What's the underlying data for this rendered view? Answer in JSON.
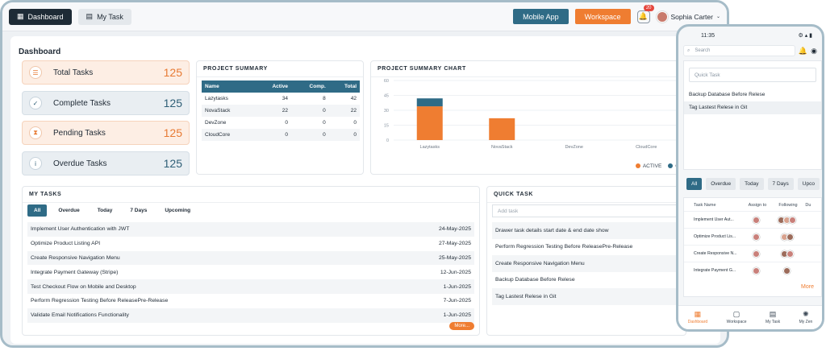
{
  "header": {
    "tabs": [
      {
        "label": "Dashboard"
      },
      {
        "label": "My Task"
      }
    ],
    "mobile_app": "Mobile App",
    "workspace": "Workspace",
    "notification_count": "20",
    "user_name": "Sophia Carter"
  },
  "page_title": "Dashboard",
  "stats": [
    {
      "label": "Total Tasks",
      "value": "125"
    },
    {
      "label": "Complete Tasks",
      "value": "125"
    },
    {
      "label": "Pending Tasks",
      "value": "125"
    },
    {
      "label": "Overdue Tasks",
      "value": "125"
    }
  ],
  "project_summary": {
    "title": "PROJECT SUMMARY",
    "columns": [
      "Name",
      "Active",
      "Comp.",
      "Total"
    ],
    "rows": [
      [
        "Lazytasks",
        "34",
        "8",
        "42"
      ],
      [
        "NovaStack",
        "22",
        "0",
        "22"
      ],
      [
        "DevZone",
        "0",
        "0",
        "0"
      ],
      [
        "CloudCore",
        "0",
        "0",
        "0"
      ]
    ]
  },
  "chart_title": "PROJECT SUMMARY CHART",
  "chart_data": {
    "type": "bar",
    "categories": [
      "Lazytasks",
      "NovaStack",
      "DevZone",
      "CloudCore"
    ],
    "series": [
      {
        "name": "ACTIVE",
        "values": [
          34,
          22,
          0,
          0
        ],
        "color": "#ef7d31"
      },
      {
        "name": "C",
        "values": [
          8,
          0,
          0,
          0
        ],
        "color": "#2f6b86"
      }
    ],
    "stacked": true,
    "yticks": [
      0,
      15,
      30,
      45,
      60
    ],
    "ylim": [
      0,
      60
    ],
    "legend_position": "bottom-right"
  },
  "my_tasks": {
    "title": "MY TASKS",
    "filters": [
      "All",
      "Overdue",
      "Today",
      "7 Days",
      "Upcoming"
    ],
    "rows": [
      {
        "name": "Implement User Authentication with JWT",
        "date": "24-May-2025"
      },
      {
        "name": "Optimize Product Listing API",
        "date": "27-May-2025"
      },
      {
        "name": "Create Responsive Navigation Menu",
        "date": "25-May-2025"
      },
      {
        "name": "Integrate Payment Gateway (Stripe)",
        "date": "12-Jun-2025"
      },
      {
        "name": "Test Checkout Flow on Mobile and Desktop",
        "date": "1-Jun-2025"
      },
      {
        "name": "Perform Regression Testing Before ReleasePre-Release",
        "date": "7-Jun-2025"
      },
      {
        "name": "Validate Email Notifications Functionality",
        "date": "1-Jun-2025"
      }
    ],
    "more": "More..."
  },
  "quick_task": {
    "title": "QUICK TASK",
    "placeholder": "Add task",
    "items": [
      "Drawer task details start date & end date show",
      "Perform Regression Testing Before ReleasePre-Release",
      "Create Responsive Navigation Menu",
      "Backup Database Before Relese",
      "Tag Lastest Relese in Git"
    ]
  },
  "mobile": {
    "time": "11:35",
    "search_placeholder": "Search",
    "quick_placeholder": "Quick Task",
    "quick_items": [
      "Backup Database Before Relese",
      "Tag Lastest Relese in Git"
    ],
    "filters": [
      "All",
      "Overdue",
      "Today",
      "7 Days",
      "Upco"
    ],
    "columns": [
      "Task Name",
      "Assign to",
      "Following",
      "Du"
    ],
    "rows": [
      "Implement User Aut...",
      "Optimize Product Lis...",
      "Create Responsive N...",
      "Integrate Payment G..."
    ],
    "more": "More",
    "nav": [
      "Dashboard",
      "Workspace",
      "My Task",
      "My Zen"
    ]
  }
}
